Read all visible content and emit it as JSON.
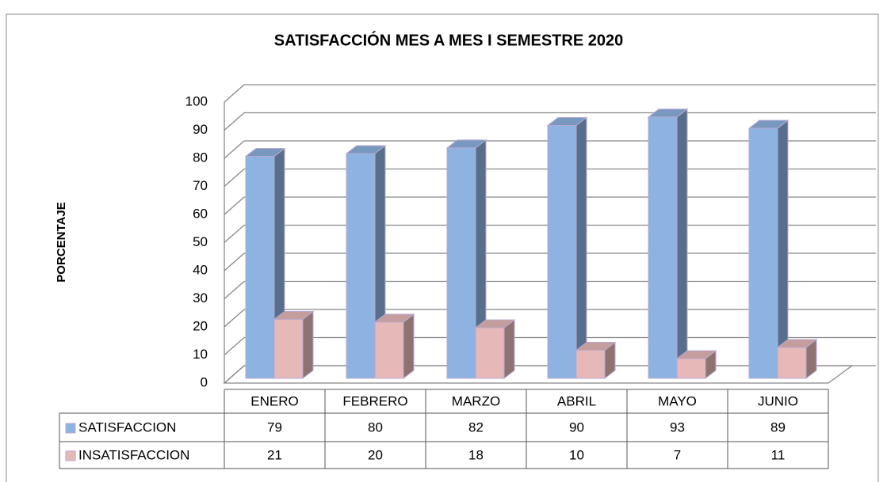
{
  "chart_data": {
    "type": "bar",
    "title": "SATISFACCIÓN MES A MES I SEMESTRE 2020",
    "y_label": "PORCENTAJE",
    "categories": [
      "ENERO",
      "FEBRERO",
      "MARZO",
      "ABRIL",
      "MAYO",
      "JUNIO"
    ],
    "series": [
      {
        "name": "SATISFACCION",
        "color": "#8db3e2",
        "values": [
          79,
          80,
          82,
          90,
          93,
          89
        ]
      },
      {
        "name": "INSATISFACCION",
        "color": "#e6b9b8",
        "values": [
          21,
          20,
          18,
          10,
          7,
          11
        ]
      }
    ],
    "ylim": [
      0,
      100
    ],
    "yticks": [
      0,
      10,
      20,
      30,
      40,
      50,
      60,
      70,
      80,
      90,
      100
    ],
    "grid": true
  }
}
